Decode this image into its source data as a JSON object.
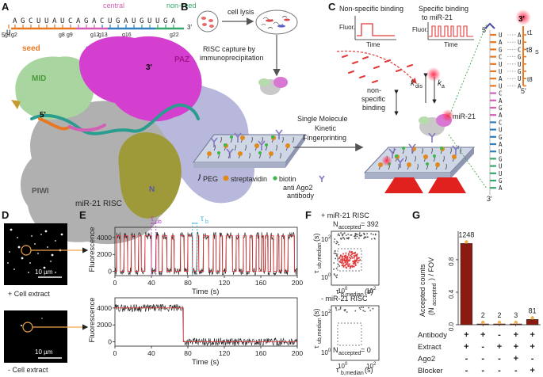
{
  "panels": {
    "A": {
      "letter": "A",
      "sequence": "UAGCUUAUCAGACUGAUGUUGA",
      "five_prime": "5'",
      "three_prime": "3'",
      "g_positions": [
        "g1",
        "g2",
        "g8",
        "g9",
        "g12",
        "g13",
        "g16",
        "g22"
      ],
      "regions": {
        "seed": "seed",
        "central": "central",
        "non_seed": "non-seed",
        "supplementary": "supplementary"
      },
      "domains": {
        "mid": "MID",
        "paz": "PAZ",
        "piwi": "PIWI",
        "n": "N"
      },
      "strand_3": "3'",
      "strand_5": "5'",
      "caption": "miR-21 RISC",
      "colors": {
        "seed": "#e87722",
        "central": "#d45fb5",
        "non_seed": "#35a86b",
        "supplementary": "#2f7fbf"
      }
    },
    "B": {
      "letter": "B",
      "cell_lysis": "cell lysis",
      "capture_line1": "RISC capture by",
      "capture_line2": "immunoprecipitation",
      "arrow_line1": "Single Molecule",
      "arrow_line2": "Kinetic",
      "arrow_line3": "Fingerprinting",
      "legend_peg": "PEG",
      "legend_streptavidin": "streptavidin",
      "legend_biotin": "biotin",
      "legend_antibody_line1": "anti Ago2",
      "legend_antibody_line2": "antibody"
    },
    "C": {
      "letter": "C",
      "nonspecific_title": "Non-specific binding",
      "specific_title_line1": "Specific binding",
      "specific_title_line2": "to miR-21",
      "fluor": "Fluor.",
      "time": "Time",
      "nonspecific_label_line1": "non-",
      "nonspecific_label_line2": "specific",
      "nonspecific_label_line3": "binding",
      "kdis": "k",
      "kdis_sub": "dis",
      "ka": "k",
      "ka_sub": "a",
      "mir21": "miR-21",
      "probe_letters": [
        "A",
        "U",
        "C",
        "G",
        "U",
        "G",
        "U",
        "A"
      ],
      "t1": "t1",
      "t8s": "t8",
      "t8s_sub": "S",
      "t8": "t8",
      "five_prime": "5'",
      "three_prime": "3'",
      "three_prime_bottom": "3'",
      "five_prime_right": "5'",
      "mir_letters": [
        "U",
        "A",
        "G",
        "C",
        "U",
        "U",
        "A",
        "U",
        "C",
        "A",
        "G",
        "A",
        "C",
        "U",
        "G",
        "A",
        "U",
        "G",
        "U",
        "U",
        "G",
        "A"
      ]
    },
    "D": {
      "letter": "D",
      "scale": "10 µm",
      "plus_label": "+ Cell extract",
      "minus_label": "- Cell extract"
    },
    "E": {
      "letter": "E",
      "ylabel": "Fluorescence",
      "xlabel": "Time (s)",
      "tau_ub": "τ",
      "tau_ub_sub": "ub",
      "tau_b": "τ",
      "tau_b_sub": "b"
    },
    "F": {
      "letter": "F",
      "plus_title": "+ miR-21 RISC",
      "plus_n": "N",
      "plus_n_sub": "accepted",
      "plus_n_val": " = 392",
      "minus_title": "- miR-21 RISC",
      "minus_n": "N",
      "minus_n_sub": "accepted",
      "minus_n_val": " = 0",
      "ylabel": "τ",
      "ylabel_sub": "ub,median",
      "ylabel_unit": " (s)",
      "xlabel": "τ",
      "xlabel_sub": "b,median",
      "xlabel_unit": " (s)",
      "tick_1": "10",
      "tick_1_exp": "0",
      "tick_2": "10",
      "tick_2_exp": "2"
    },
    "G": {
      "letter": "G",
      "ylabel_line1": "Accepted counts",
      "ylabel_line2": "(N",
      "ylabel_sub": "accepted",
      "ylabel_line2_end": ") / FOV",
      "row_labels": [
        "Antibody",
        "Extract",
        "Ago2",
        "Blocker"
      ],
      "signs": [
        [
          "+",
          "+",
          "-",
          "+",
          "+"
        ],
        [
          "+",
          "-",
          "+",
          "+",
          "+"
        ],
        [
          "-",
          "-",
          "-",
          "+",
          "-"
        ],
        [
          "-",
          "-",
          "-",
          "-",
          "+"
        ]
      ]
    }
  },
  "chart_data": [
    {
      "type": "line",
      "title": "",
      "panel": "E-top",
      "xlabel": "Time (s)",
      "ylabel": "Fluorescence",
      "xlim": [
        0,
        200
      ],
      "ylim": [
        -500,
        5200
      ],
      "xticks": [
        0,
        40,
        80,
        120,
        160,
        200
      ],
      "yticks": [
        0,
        2000,
        4000
      ],
      "high": 4200,
      "low": 0,
      "series": [
        {
          "name": "",
          "bound_intervals": [
            [
              2,
              6
            ],
            [
              10,
              14
            ],
            [
              18,
              22
            ],
            [
              26,
              29
            ],
            [
              33,
              40
            ],
            [
              45,
              48
            ],
            [
              52,
              57
            ],
            [
              62,
              65
            ],
            [
              72,
              76
            ],
            [
              80,
              85
            ],
            [
              90,
              92
            ],
            [
              97,
              103
            ],
            [
              108,
              111
            ],
            [
              115,
              118
            ],
            [
              122,
              129
            ],
            [
              133,
              136
            ],
            [
              141,
              144
            ],
            [
              148,
              151
            ],
            [
              155,
              158
            ],
            [
              161,
              163
            ],
            [
              165,
              168
            ],
            [
              171,
              174
            ],
            [
              178,
              180
            ],
            [
              183,
              186
            ],
            [
              190,
              197
            ]
          ]
        }
      ]
    },
    {
      "type": "line",
      "title": "",
      "panel": "E-bottom",
      "xlabel": "Time (s)",
      "ylabel": "Fluorescence",
      "xlim": [
        0,
        200
      ],
      "ylim": [
        -500,
        5200
      ],
      "xticks": [
        0,
        40,
        80,
        120,
        160,
        200
      ],
      "yticks": [
        0,
        2000,
        4000
      ],
      "high": 4000,
      "low": 0,
      "series": [
        {
          "name": "",
          "bound_intervals": [
            [
              0,
              75
            ]
          ]
        }
      ]
    },
    {
      "type": "bar",
      "title": "",
      "panel": "G",
      "categories": [
        "1",
        "2",
        "3",
        "4",
        "5"
      ],
      "values": [
        1248,
        2,
        2,
        3,
        81
      ],
      "value_labels": [
        "1248",
        "2",
        "2",
        "3",
        "81"
      ],
      "ylim": [
        0,
        1.15
      ],
      "normalized": [
        1.0,
        0.0016,
        0.0016,
        0.0024,
        0.065
      ],
      "yticks": [
        "0.0",
        "0.4",
        "0.8"
      ],
      "ytick_values": [
        0,
        0.4,
        0.8
      ],
      "bar_color": "#8b1a10"
    }
  ]
}
